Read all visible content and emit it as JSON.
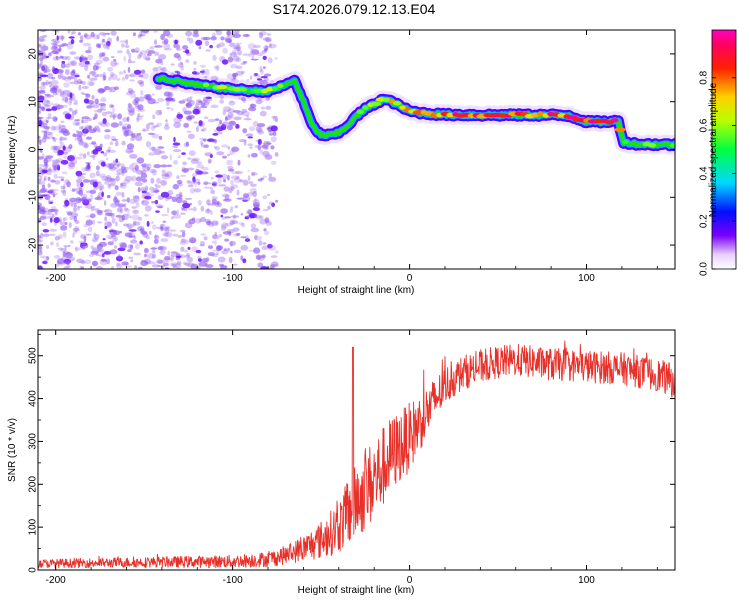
{
  "title": "S174.2026.079.12.13.E04",
  "colors": {
    "snr_line": "#e8302a",
    "ridge_core": "#ff2a2a",
    "ridge_mid": "#22e000",
    "ridge_edge": "#00b4ff",
    "ridge_outer": "#5000ff",
    "noise": "#9a66f0"
  },
  "chart_data": [
    {
      "id": "spectrogram",
      "type": "heatmap",
      "xlabel": "Height of straight line (km)",
      "ylabel": "Frequency (Hz)",
      "xlim": [
        -210,
        150
      ],
      "ylim": [
        -25,
        25
      ],
      "xticks": [
        -200,
        -100,
        0,
        100
      ],
      "yticks": [
        -20,
        -10,
        0,
        10,
        20
      ],
      "colorbar": {
        "label": "Normalized spectral amplitude",
        "range": [
          0,
          1
        ],
        "ticks": [
          0.0,
          0.2,
          0.4,
          0.6,
          0.8
        ],
        "tick_labels": [
          "0.0",
          "0.2",
          "0.4",
          "0.6",
          "0.8"
        ],
        "colormap": "white-purple-blue-cyan-green-yellow-red-magenta"
      },
      "noise_region_x": [
        -210,
        -75
      ],
      "ridge": {
        "x": [
          -142,
          -130,
          -120,
          -110,
          -100,
          -90,
          -80,
          -70,
          -65,
          -60,
          -55,
          -50,
          -45,
          -40,
          -35,
          -30,
          -25,
          -20,
          -15,
          -10,
          -5,
          0,
          10,
          20,
          40,
          60,
          80,
          90,
          100,
          110,
          118,
          121,
          130,
          150
        ],
        "freq": [
          15,
          14.2,
          13.5,
          13,
          12.6,
          12.3,
          12.2,
          13.5,
          14.5,
          10,
          5,
          3,
          3,
          3.5,
          5,
          7,
          8.5,
          9.5,
          10.5,
          10,
          9,
          8,
          7.5,
          7.3,
          7.2,
          7.2,
          7.2,
          7.1,
          5.8,
          5.8,
          5.9,
          1.5,
          1.1,
          1.0
        ],
        "amplitude": [
          0.45,
          0.5,
          0.55,
          0.6,
          0.62,
          0.6,
          0.65,
          0.5,
          0.4,
          0.38,
          0.35,
          0.35,
          0.35,
          0.4,
          0.45,
          0.5,
          0.55,
          0.6,
          0.65,
          0.7,
          0.75,
          0.8,
          0.85,
          0.88,
          0.9,
          0.9,
          0.88,
          0.9,
          0.95,
          0.95,
          0.9,
          0.6,
          0.55,
          0.5
        ]
      }
    },
    {
      "id": "snr",
      "type": "line",
      "xlabel": "Height of straight line (km)",
      "ylabel": "SNR (10 * v/v)",
      "xlim": [
        -210,
        150
      ],
      "ylim": [
        0,
        560
      ],
      "xticks": [
        -200,
        -100,
        0,
        100
      ],
      "yticks": [
        0,
        100,
        200,
        300,
        400,
        500
      ],
      "spike": {
        "x": -32,
        "y": 520
      },
      "envelope": {
        "x": [
          -210,
          -150,
          -100,
          -80,
          -70,
          -60,
          -50,
          -40,
          -35,
          -30,
          -20,
          -10,
          0,
          10,
          20,
          30,
          40,
          50,
          60,
          80,
          100,
          120,
          140,
          150
        ],
        "mean": [
          15,
          18,
          20,
          25,
          35,
          50,
          70,
          100,
          130,
          160,
          210,
          270,
          310,
          370,
          430,
          460,
          475,
          485,
          490,
          480,
          475,
          470,
          455,
          440
        ],
        "noise": [
          10,
          12,
          15,
          18,
          22,
          30,
          45,
          60,
          80,
          90,
          100,
          90,
          80,
          60,
          45,
          40,
          40,
          38,
          38,
          38,
          38,
          38,
          38,
          40
        ]
      }
    }
  ]
}
